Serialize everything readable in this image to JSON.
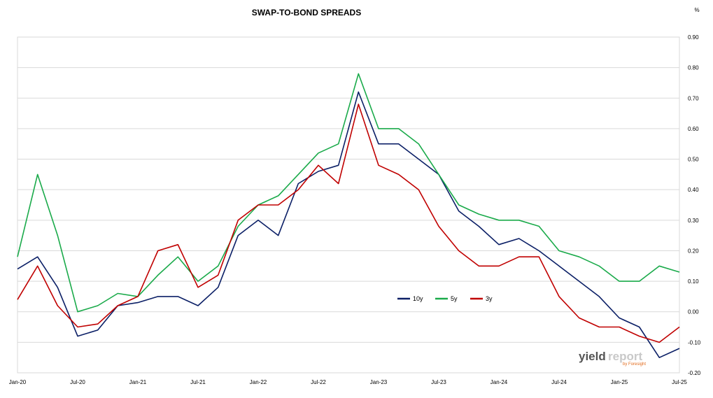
{
  "chart_data": {
    "type": "line",
    "title": "SWAP-TO-BOND SPREADS",
    "unit_label": "%",
    "ylim": [
      -0.2,
      0.9
    ],
    "y_ticks": [
      "0.90",
      "0.80",
      "0.70",
      "0.60",
      "0.50",
      "0.40",
      "0.30",
      "0.20",
      "0.10",
      "0.00",
      "-0.10",
      "-0.20"
    ],
    "x_ticks": [
      "Jan-20",
      "Jul-20",
      "Jan-21",
      "Jul-21",
      "Jan-22",
      "Jul-22",
      "Jan-23",
      "Jul-23",
      "Jan-24",
      "Jul-24",
      "Jan-25",
      "Jul-25"
    ],
    "x_range": [
      "Jan-20",
      "Jul-25"
    ],
    "grid": "horizontal",
    "legend_placement": "center-right",
    "series": [
      {
        "name": "10y",
        "color": "#0b1f66",
        "x": [
          "Jan-20",
          "Mar-20",
          "May-20",
          "Jul-20",
          "Sep-20",
          "Nov-20",
          "Jan-21",
          "Mar-21",
          "May-21",
          "Jul-21",
          "Sep-21",
          "Nov-21",
          "Jan-22",
          "Mar-22",
          "May-22",
          "Jul-22",
          "Sep-22",
          "Nov-22",
          "Jan-23",
          "Mar-23",
          "May-23",
          "Jul-23",
          "Sep-23",
          "Nov-23",
          "Jan-24",
          "Mar-24",
          "May-24",
          "Jul-24",
          "Sep-24",
          "Nov-24",
          "Jan-25",
          "Mar-25",
          "May-25",
          "Jul-25"
        ],
        "values": [
          0.14,
          0.18,
          0.08,
          -0.08,
          -0.06,
          0.02,
          0.03,
          0.05,
          0.05,
          0.02,
          0.08,
          0.25,
          0.3,
          0.25,
          0.42,
          0.46,
          0.48,
          0.72,
          0.55,
          0.55,
          0.5,
          0.45,
          0.33,
          0.28,
          0.22,
          0.24,
          0.2,
          0.15,
          0.1,
          0.05,
          -0.02,
          -0.05,
          -0.15,
          -0.12
        ]
      },
      {
        "name": "5y",
        "color": "#1aaa4a",
        "x": [
          "Jan-20",
          "Mar-20",
          "May-20",
          "Jul-20",
          "Sep-20",
          "Nov-20",
          "Jan-21",
          "Mar-21",
          "May-21",
          "Jul-21",
          "Sep-21",
          "Nov-21",
          "Jan-22",
          "Mar-22",
          "May-22",
          "Jul-22",
          "Sep-22",
          "Nov-22",
          "Jan-23",
          "Mar-23",
          "May-23",
          "Jul-23",
          "Sep-23",
          "Nov-23",
          "Jan-24",
          "Mar-24",
          "May-24",
          "Jul-24",
          "Sep-24",
          "Nov-24",
          "Jan-25",
          "Mar-25",
          "May-25",
          "Jul-25"
        ],
        "values": [
          0.18,
          0.45,
          0.25,
          0.0,
          0.02,
          0.06,
          0.05,
          0.12,
          0.18,
          0.1,
          0.15,
          0.28,
          0.35,
          0.38,
          0.45,
          0.52,
          0.55,
          0.78,
          0.6,
          0.6,
          0.55,
          0.45,
          0.35,
          0.32,
          0.3,
          0.3,
          0.28,
          0.2,
          0.18,
          0.15,
          0.1,
          0.1,
          0.15,
          0.13
        ]
      },
      {
        "name": "3y",
        "color": "#c00000",
        "x": [
          "Jan-20",
          "Mar-20",
          "May-20",
          "Jul-20",
          "Sep-20",
          "Nov-20",
          "Jan-21",
          "Mar-21",
          "May-21",
          "Jul-21",
          "Sep-21",
          "Nov-21",
          "Jan-22",
          "Mar-22",
          "May-22",
          "Jul-22",
          "Sep-22",
          "Nov-22",
          "Jan-23",
          "Mar-23",
          "May-23",
          "Jul-23",
          "Sep-23",
          "Nov-23",
          "Jan-24",
          "Mar-24",
          "May-24",
          "Jul-24",
          "Sep-24",
          "Nov-24",
          "Jan-25",
          "Mar-25",
          "May-25",
          "Jul-25"
        ],
        "values": [
          0.04,
          0.15,
          0.02,
          -0.05,
          -0.04,
          0.02,
          0.05,
          0.2,
          0.22,
          0.08,
          0.12,
          0.3,
          0.35,
          0.35,
          0.4,
          0.48,
          0.42,
          0.68,
          0.48,
          0.45,
          0.4,
          0.28,
          0.2,
          0.15,
          0.15,
          0.18,
          0.18,
          0.05,
          -0.02,
          -0.05,
          -0.05,
          -0.08,
          -0.1,
          -0.05
        ]
      }
    ]
  },
  "watermark": {
    "word1": "yield",
    "word2": "report",
    "byline": "by Foresight"
  }
}
